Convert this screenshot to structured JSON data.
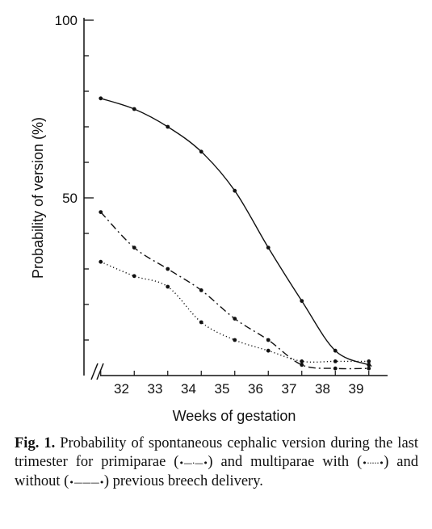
{
  "chart_data": {
    "type": "line",
    "xlabel": "Weeks of gestation",
    "ylabel": "Probability of version (%)",
    "categories": [
      "32",
      "33",
      "34",
      "35",
      "36",
      "37",
      "38",
      "39"
    ],
    "ylim": [
      0,
      100
    ],
    "yticks": [
      100,
      50
    ],
    "grid": false,
    "axis_break": true,
    "series": [
      {
        "name": "multiparae without previous breech delivery",
        "style": "solid",
        "x": [
          31.5,
          32.5,
          33.5,
          34.5,
          35.5,
          36.5,
          37.5,
          38.5,
          39.5,
          39.5
        ],
        "values": [
          78,
          75,
          70,
          63,
          52,
          36,
          21,
          7,
          3,
          3
        ]
      },
      {
        "name": "primiparae",
        "style": "dash-dot",
        "x": [
          31.5,
          32.5,
          33.5,
          34.5,
          35.5,
          36.5,
          37.5,
          38.5,
          39.5
        ],
        "values": [
          46,
          36,
          30,
          24,
          16,
          10,
          3,
          2,
          2
        ]
      },
      {
        "name": "multiparae with previous breech delivery",
        "style": "dotted",
        "x": [
          31.5,
          32.5,
          33.5,
          34.5,
          35.5,
          36.5,
          37.5,
          38.5,
          39.5
        ],
        "values": [
          32,
          28,
          25,
          15,
          10,
          7,
          4,
          4,
          4
        ]
      }
    ]
  },
  "caption": {
    "label": "Fig. 1.",
    "text_1": "Probability of spontaneous cephalic version during the last trimester for primiparae (",
    "key_primiparae": "•—·—•",
    "text_2": ") and multiparae with (",
    "key_with": "•·····•",
    "text_3": ") and without (",
    "key_without": "•———•",
    "text_4": ") previous breech delivery."
  }
}
